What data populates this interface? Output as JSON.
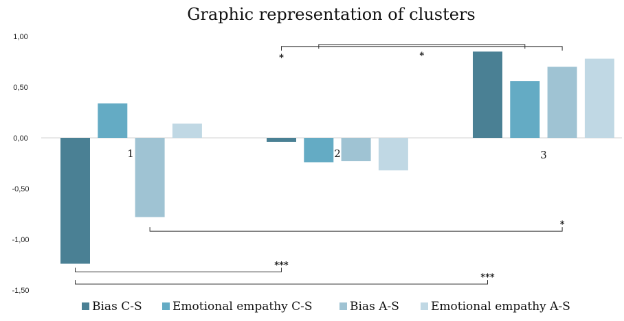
{
  "chart_data": {
    "type": "bar",
    "title": "Graphic representation of clusters",
    "categories": [
      "1",
      "2",
      "3"
    ],
    "ylim": [
      -1.5,
      1.0
    ],
    "yticks": [
      "1,00",
      "0,50",
      "0,00",
      "-0,50",
      "-1,00",
      "-1,50"
    ],
    "ytick_values": [
      1.0,
      0.5,
      0.0,
      -0.5,
      -1.0,
      -1.5
    ],
    "grid": false,
    "legend_position": "bottom",
    "series": [
      {
        "name": "Bias C-S",
        "color": "#4a8094",
        "values": [
          -1.24,
          -0.04,
          0.85
        ]
      },
      {
        "name": "Emotional empathy C-S",
        "color": "#64abc4",
        "values": [
          0.34,
          -0.24,
          0.56
        ]
      },
      {
        "name": "Bias A-S",
        "color": "#9fc3d3",
        "values": [
          -0.78,
          -0.23,
          0.7
        ]
      },
      {
        "name": "Emotional empathy A-S",
        "color": "#c0d8e4",
        "values": [
          0.14,
          -0.32,
          0.78
        ]
      }
    ],
    "annotations": [
      {
        "label": "*",
        "from_series": 1,
        "from_cat": 1,
        "to_series": 1,
        "to_cat": 2,
        "direction": "up",
        "level": 0.92
      },
      {
        "label": "*",
        "from_series": 0,
        "from_cat": 1,
        "to_series": 2,
        "to_cat": 2,
        "direction": "up",
        "level": 0.9,
        "label_side": "start"
      },
      {
        "label": "*",
        "from_series": 2,
        "from_cat": 0,
        "to_series": 2,
        "to_cat": 2,
        "direction": "down",
        "level": -0.92
      },
      {
        "label": "***",
        "from_series": 0,
        "from_cat": 0,
        "to_series": 0,
        "to_cat": 1,
        "direction": "down",
        "level": -1.32
      },
      {
        "label": "***",
        "from_series": 0,
        "from_cat": 0,
        "to_series": 0,
        "to_cat": 2,
        "direction": "down",
        "level": -1.44
      }
    ]
  }
}
